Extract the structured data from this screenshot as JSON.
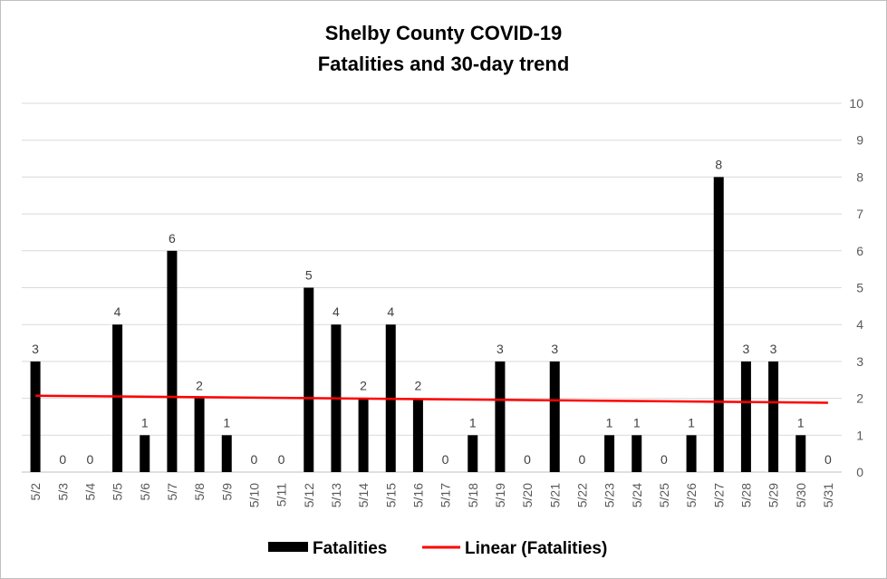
{
  "chart_data": {
    "type": "bar",
    "title": "Shelby County COVID-19",
    "subtitle": "Fatalities and 30-day trend",
    "categories": [
      "5/2",
      "5/3",
      "5/4",
      "5/5",
      "5/6",
      "5/7",
      "5/8",
      "5/9",
      "5/10",
      "5/11",
      "5/12",
      "5/13",
      "5/14",
      "5/15",
      "5/16",
      "5/17",
      "5/18",
      "5/19",
      "5/20",
      "5/21",
      "5/22",
      "5/23",
      "5/24",
      "5/25",
      "5/26",
      "5/27",
      "5/28",
      "5/29",
      "5/30",
      "5/31"
    ],
    "series": [
      {
        "name": "Fatalities",
        "color": "#000000",
        "values": [
          3,
          0,
          0,
          4,
          1,
          6,
          2,
          1,
          0,
          0,
          5,
          4,
          2,
          4,
          2,
          0,
          1,
          3,
          0,
          3,
          0,
          1,
          1,
          0,
          1,
          8,
          3,
          3,
          1,
          0
        ]
      }
    ],
    "trendline": {
      "name": "Linear (Fatalities)",
      "color": "#ff0000",
      "start": 2.07,
      "end": 1.88
    },
    "y_ticks": [
      "0",
      "1",
      "2",
      "3",
      "4",
      "5",
      "6",
      "7",
      "8",
      "9",
      "10"
    ],
    "ylim": [
      0,
      10
    ],
    "y_axis_side": "right",
    "grid": true,
    "legend_position": "bottom",
    "xlabel": "",
    "ylabel": ""
  }
}
